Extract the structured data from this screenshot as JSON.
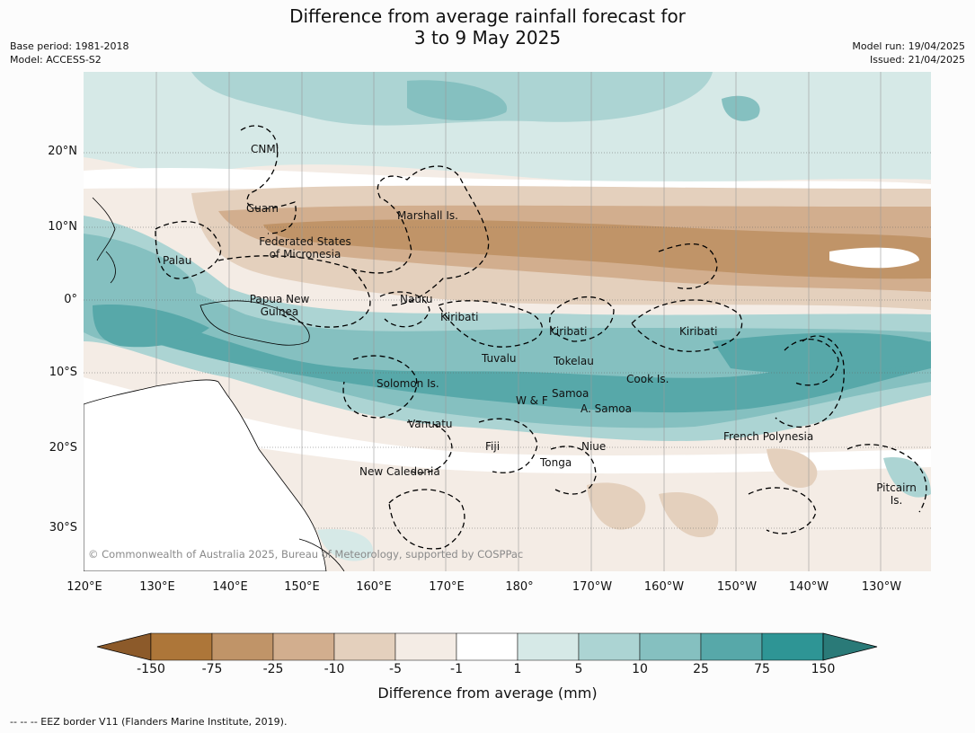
{
  "title": {
    "line1": "Difference from average rainfall forecast for",
    "line2": "3 to 9 May 2025"
  },
  "meta_left": {
    "base_period": "Base period: 1981-2018",
    "model": "Model: ACCESS-S2"
  },
  "meta_right": {
    "model_run": "Model run: 19/04/2025",
    "issued": "Issued: 21/04/2025"
  },
  "lat_labels": [
    "20°N",
    "10°N",
    "0°",
    "10°S",
    "20°S",
    "30°S"
  ],
  "lon_labels": [
    "120°E",
    "130°E",
    "140°E",
    "150°E",
    "160°E",
    "170°E",
    "180°",
    "170°W",
    "160°W",
    "150°W",
    "140°W",
    "130°W"
  ],
  "places": [
    {
      "name": "CNMI"
    },
    {
      "name": "Guam"
    },
    {
      "name": "Marshall Is."
    },
    {
      "name": "Federated States of Micronesia"
    },
    {
      "name": "Palau"
    },
    {
      "name": "Papua New Guinea"
    },
    {
      "name": "Nauru"
    },
    {
      "name": "Kiribati"
    },
    {
      "name": "Kiribati"
    },
    {
      "name": "Kiribati"
    },
    {
      "name": "Tuvalu"
    },
    {
      "name": "Tokelau"
    },
    {
      "name": "Cook Is."
    },
    {
      "name": "Solomon Is."
    },
    {
      "name": "W & F"
    },
    {
      "name": "Samoa"
    },
    {
      "name": "A. Samoa"
    },
    {
      "name": "Vanuatu"
    },
    {
      "name": "Fiji"
    },
    {
      "name": "Niue"
    },
    {
      "name": "French Polynesia"
    },
    {
      "name": "Tonga"
    },
    {
      "name": "New Caledonia"
    },
    {
      "name": "Pitcairn Is."
    }
  ],
  "copyright": "© Commonwealth of Australia 2025, Bureau of Meteorology, supported by COSPPac",
  "colorbar": {
    "ticks": [
      "-150",
      "-75",
      "-25",
      "-10",
      "-5",
      "-1",
      "1",
      "5",
      "10",
      "25",
      "75",
      "150"
    ],
    "colors": [
      "#8c5a2a",
      "#ad7639",
      "#c09468",
      "#d2ae8e",
      "#e4d0bd",
      "#f4ece5",
      "#ffffff",
      "#d6e9e7",
      "#acd4d3",
      "#85c0c0",
      "#57a8a9",
      "#2e9595",
      "#2a7a78"
    ],
    "label": "Difference from average (mm)"
  },
  "footer": "--  --  -- EEZ border V11 (Flanders Marine Institute, 2019)."
}
